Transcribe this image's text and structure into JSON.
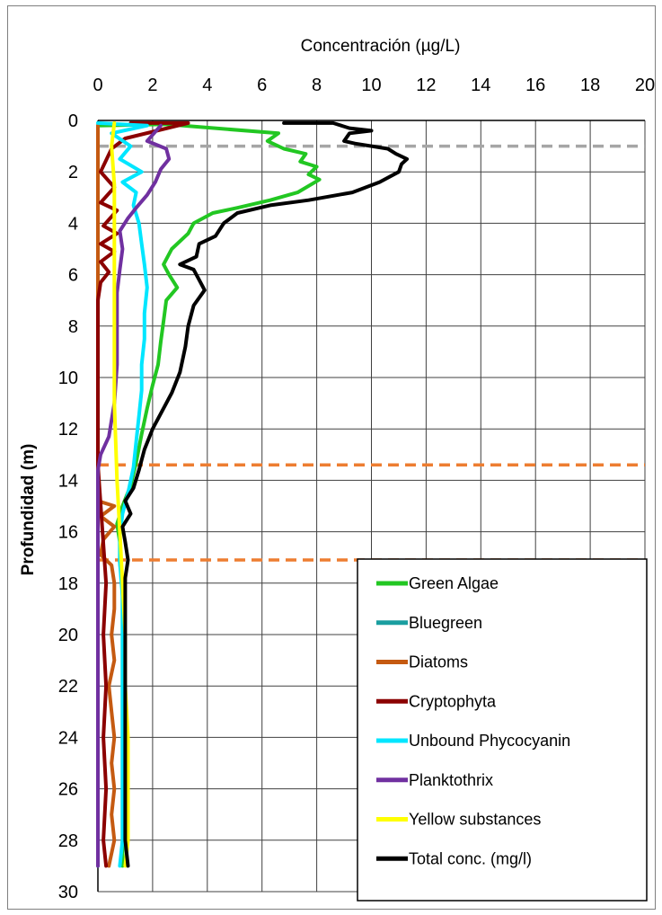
{
  "chart_data": {
    "type": "line",
    "orientation": "depth-profile",
    "xlabel": "Concentración (µg/L)",
    "ylabel": "Profundidad (m)",
    "xlim": [
      0,
      20
    ],
    "ylim": [
      0,
      30
    ],
    "y_inverted": true,
    "x_axis_position": "top",
    "xticks": [
      "0",
      "2",
      "4",
      "6",
      "8",
      "10",
      "12",
      "14",
      "16",
      "18",
      "20"
    ],
    "yticks": [
      "0",
      "2",
      "4",
      "6",
      "8",
      "10",
      "12",
      "14",
      "16",
      "18",
      "20",
      "22",
      "24",
      "26",
      "28",
      "30"
    ],
    "grid": true,
    "legend_position": "bottom-right",
    "reference_lines": [
      {
        "depth": 1.0,
        "color": "#a6a6a6",
        "style": "dashed"
      },
      {
        "depth": 13.4,
        "color": "#ed7d31",
        "style": "dashed"
      },
      {
        "depth": 17.1,
        "color": "#ed7d31",
        "style": "dashed"
      }
    ],
    "series": [
      {
        "name": "Green Algae",
        "color": "#22c722",
        "points": [
          [
            0,
            0.2
          ],
          [
            2.5,
            0.15
          ],
          [
            6.6,
            0.5
          ],
          [
            6.2,
            0.8
          ],
          [
            6.8,
            1.1
          ],
          [
            7.6,
            1.3
          ],
          [
            7.4,
            1.6
          ],
          [
            8.0,
            1.8
          ],
          [
            7.7,
            2.1
          ],
          [
            8.1,
            2.3
          ],
          [
            7.3,
            2.8
          ],
          [
            6.3,
            3.1
          ],
          [
            5.1,
            3.4
          ],
          [
            4.2,
            3.6
          ],
          [
            3.5,
            4.0
          ],
          [
            3.3,
            4.4
          ],
          [
            2.7,
            5.0
          ],
          [
            2.4,
            5.6
          ],
          [
            2.6,
            6.0
          ],
          [
            2.9,
            6.5
          ],
          [
            2.5,
            7.0
          ],
          [
            2.4,
            7.8
          ],
          [
            2.3,
            8.6
          ],
          [
            2.2,
            9.5
          ],
          [
            2.0,
            10.3
          ],
          [
            1.8,
            11.2
          ],
          [
            1.6,
            12.2
          ],
          [
            1.4,
            13.3
          ],
          [
            1.2,
            14.2
          ],
          [
            0.9,
            15.0
          ],
          [
            0.7,
            15.7
          ],
          [
            0.8,
            16.4
          ],
          [
            0.8,
            17.2
          ],
          [
            0.9,
            18.0
          ],
          [
            0.9,
            20.0
          ],
          [
            0.9,
            22.0
          ],
          [
            0.9,
            24.0
          ],
          [
            0.9,
            26.0
          ],
          [
            0.9,
            28.0
          ],
          [
            0.9,
            29.0
          ]
        ]
      },
      {
        "name": "Bluegreen",
        "color": "#1a9ea0",
        "points": [
          [
            0,
            0.2
          ],
          [
            0,
            29.0
          ]
        ]
      },
      {
        "name": "Diatoms",
        "color": "#c55a11",
        "points": [
          [
            0,
            0.2
          ],
          [
            0,
            14.8
          ],
          [
            0.6,
            15.0
          ],
          [
            0.1,
            15.4
          ],
          [
            0.6,
            15.8
          ],
          [
            0.2,
            16.3
          ],
          [
            0.1,
            16.9
          ],
          [
            0.5,
            17.3
          ],
          [
            0.6,
            18.0
          ],
          [
            0.6,
            19.0
          ],
          [
            0.5,
            20.0
          ],
          [
            0.6,
            21.0
          ],
          [
            0.4,
            22.0
          ],
          [
            0.5,
            23.0
          ],
          [
            0.6,
            24.0
          ],
          [
            0.5,
            25.0
          ],
          [
            0.6,
            26.0
          ],
          [
            0.5,
            27.0
          ],
          [
            0.6,
            28.0
          ],
          [
            0.4,
            29.0
          ]
        ]
      },
      {
        "name": "Cryptophyta",
        "color": "#8b0000",
        "points": [
          [
            1.2,
            0.1
          ],
          [
            3.3,
            0.1
          ],
          [
            1.0,
            0.7
          ],
          [
            0.5,
            1.1
          ],
          [
            0.1,
            2.0
          ],
          [
            0.6,
            2.6
          ],
          [
            0.1,
            3.2
          ],
          [
            0.7,
            3.5
          ],
          [
            0.2,
            4.1
          ],
          [
            0.7,
            4.4
          ],
          [
            0.1,
            4.8
          ],
          [
            0.6,
            5.1
          ],
          [
            0.1,
            5.5
          ],
          [
            0.4,
            5.9
          ],
          [
            0.1,
            6.3
          ],
          [
            0,
            7.0
          ],
          [
            0,
            13.4
          ],
          [
            0.3,
            18.0
          ],
          [
            0.2,
            20.0
          ],
          [
            0.3,
            22.0
          ],
          [
            0.2,
            24.0
          ],
          [
            0.3,
            26.0
          ],
          [
            0.2,
            28.0
          ],
          [
            0.3,
            29.0
          ]
        ]
      },
      {
        "name": "Unbound Phycocyanin",
        "color": "#00e6ff",
        "points": [
          [
            0,
            0.1
          ],
          [
            1.8,
            0.2
          ],
          [
            0.5,
            0.5
          ],
          [
            1.2,
            1.0
          ],
          [
            0.8,
            1.5
          ],
          [
            1.6,
            2.0
          ],
          [
            0.9,
            2.4
          ],
          [
            1.4,
            2.8
          ],
          [
            1.3,
            3.3
          ],
          [
            1.5,
            4.0
          ],
          [
            1.6,
            4.8
          ],
          [
            1.7,
            5.6
          ],
          [
            1.8,
            6.5
          ],
          [
            1.7,
            7.5
          ],
          [
            1.7,
            8.5
          ],
          [
            1.6,
            9.5
          ],
          [
            1.6,
            10.5
          ],
          [
            1.5,
            11.5
          ],
          [
            1.4,
            12.5
          ],
          [
            1.3,
            13.5
          ],
          [
            1.1,
            14.5
          ],
          [
            0.9,
            15.3
          ],
          [
            0.8,
            16.2
          ],
          [
            0.8,
            17.2
          ],
          [
            0.9,
            18.5
          ],
          [
            0.9,
            20.0
          ],
          [
            0.9,
            22.0
          ],
          [
            0.9,
            24.0
          ],
          [
            0.9,
            26.0
          ],
          [
            0.9,
            28.0
          ],
          [
            0.8,
            29.0
          ]
        ]
      },
      {
        "name": "Planktothrix",
        "color": "#7030a0",
        "points": [
          [
            2.3,
            0.2
          ],
          [
            1.8,
            0.8
          ],
          [
            2.5,
            1.1
          ],
          [
            2.6,
            1.5
          ],
          [
            2.3,
            1.9
          ],
          [
            2.1,
            2.4
          ],
          [
            1.8,
            2.9
          ],
          [
            1.4,
            3.4
          ],
          [
            1.1,
            3.8
          ],
          [
            0.8,
            4.3
          ],
          [
            0.9,
            5.0
          ],
          [
            0.8,
            5.8
          ],
          [
            0.7,
            6.7
          ],
          [
            0.7,
            8.0
          ],
          [
            0.7,
            9.5
          ],
          [
            0.6,
            11.0
          ],
          [
            0.4,
            12.3
          ],
          [
            0.1,
            13.0
          ],
          [
            0,
            13.6
          ],
          [
            0,
            29.0
          ]
        ]
      },
      {
        "name": "Yellow substances",
        "color": "#ffff00",
        "points": [
          [
            0.6,
            0.1
          ],
          [
            0.5,
            1.0
          ],
          [
            0.6,
            2.5
          ],
          [
            0.6,
            5.0
          ],
          [
            0.6,
            8.0
          ],
          [
            0.6,
            11.0
          ],
          [
            0.7,
            14.0
          ],
          [
            0.8,
            16.0
          ],
          [
            0.9,
            18.0
          ],
          [
            1.0,
            20.0
          ],
          [
            1.0,
            22.0
          ],
          [
            1.1,
            24.0
          ],
          [
            1.1,
            26.0
          ],
          [
            1.1,
            28.0
          ],
          [
            1.0,
            29.0
          ]
        ]
      },
      {
        "name": "Total conc. (mg/l)",
        "color": "#000000",
        "points": [
          [
            6.8,
            0.1
          ],
          [
            8.6,
            0.1
          ],
          [
            9.2,
            0.3
          ],
          [
            10.0,
            0.4
          ],
          [
            9.2,
            0.5
          ],
          [
            9.0,
            0.8
          ],
          [
            9.4,
            0.9
          ],
          [
            10.6,
            1.1
          ],
          [
            10.9,
            1.3
          ],
          [
            11.3,
            1.5
          ],
          [
            11.1,
            1.7
          ],
          [
            11.0,
            2.0
          ],
          [
            10.3,
            2.4
          ],
          [
            9.3,
            2.8
          ],
          [
            7.7,
            3.1
          ],
          [
            6.3,
            3.3
          ],
          [
            5.1,
            3.6
          ],
          [
            4.6,
            4.0
          ],
          [
            4.3,
            4.5
          ],
          [
            3.7,
            4.8
          ],
          [
            3.6,
            5.3
          ],
          [
            3.0,
            5.6
          ],
          [
            3.5,
            5.8
          ],
          [
            3.7,
            6.2
          ],
          [
            3.9,
            6.6
          ],
          [
            3.5,
            7.2
          ],
          [
            3.3,
            8.0
          ],
          [
            3.2,
            8.8
          ],
          [
            3.0,
            9.8
          ],
          [
            2.7,
            10.6
          ],
          [
            2.4,
            11.2
          ],
          [
            2.0,
            12.0
          ],
          [
            1.7,
            12.8
          ],
          [
            1.5,
            13.6
          ],
          [
            1.3,
            14.3
          ],
          [
            1.0,
            14.8
          ],
          [
            1.2,
            15.3
          ],
          [
            0.9,
            15.8
          ],
          [
            1.0,
            16.4
          ],
          [
            1.1,
            17.1
          ],
          [
            1.0,
            17.8
          ],
          [
            1.0,
            18.5
          ],
          [
            1.0,
            20.0
          ],
          [
            1.0,
            22.0
          ],
          [
            1.0,
            24.0
          ],
          [
            1.0,
            26.0
          ],
          [
            1.0,
            28.0
          ],
          [
            1.1,
            29.0
          ]
        ]
      }
    ]
  }
}
